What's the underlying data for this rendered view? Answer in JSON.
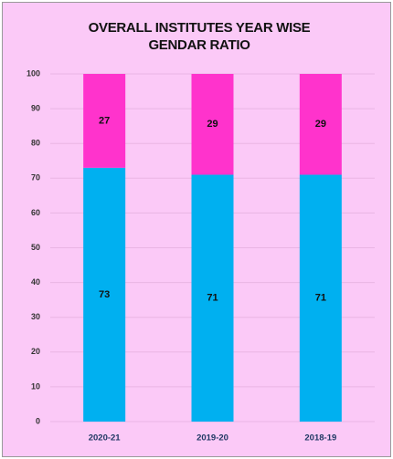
{
  "chart_data": {
    "type": "stacked_bar",
    "title": "OVERALL INSTITUTES YEAR WISE GENDAR RATIO",
    "categories": [
      "2020-21",
      "2019-20",
      "2018-19"
    ],
    "series": [
      {
        "color": "#00b0f0",
        "values": [
          73,
          71,
          71
        ]
      },
      {
        "color": "#ff33cc",
        "values": [
          27,
          29,
          29
        ]
      }
    ],
    "ylim": [
      0,
      100
    ],
    "yticks": [
      0,
      10,
      20,
      30,
      40,
      50,
      60,
      70,
      80,
      90,
      100
    ],
    "grid": true
  }
}
